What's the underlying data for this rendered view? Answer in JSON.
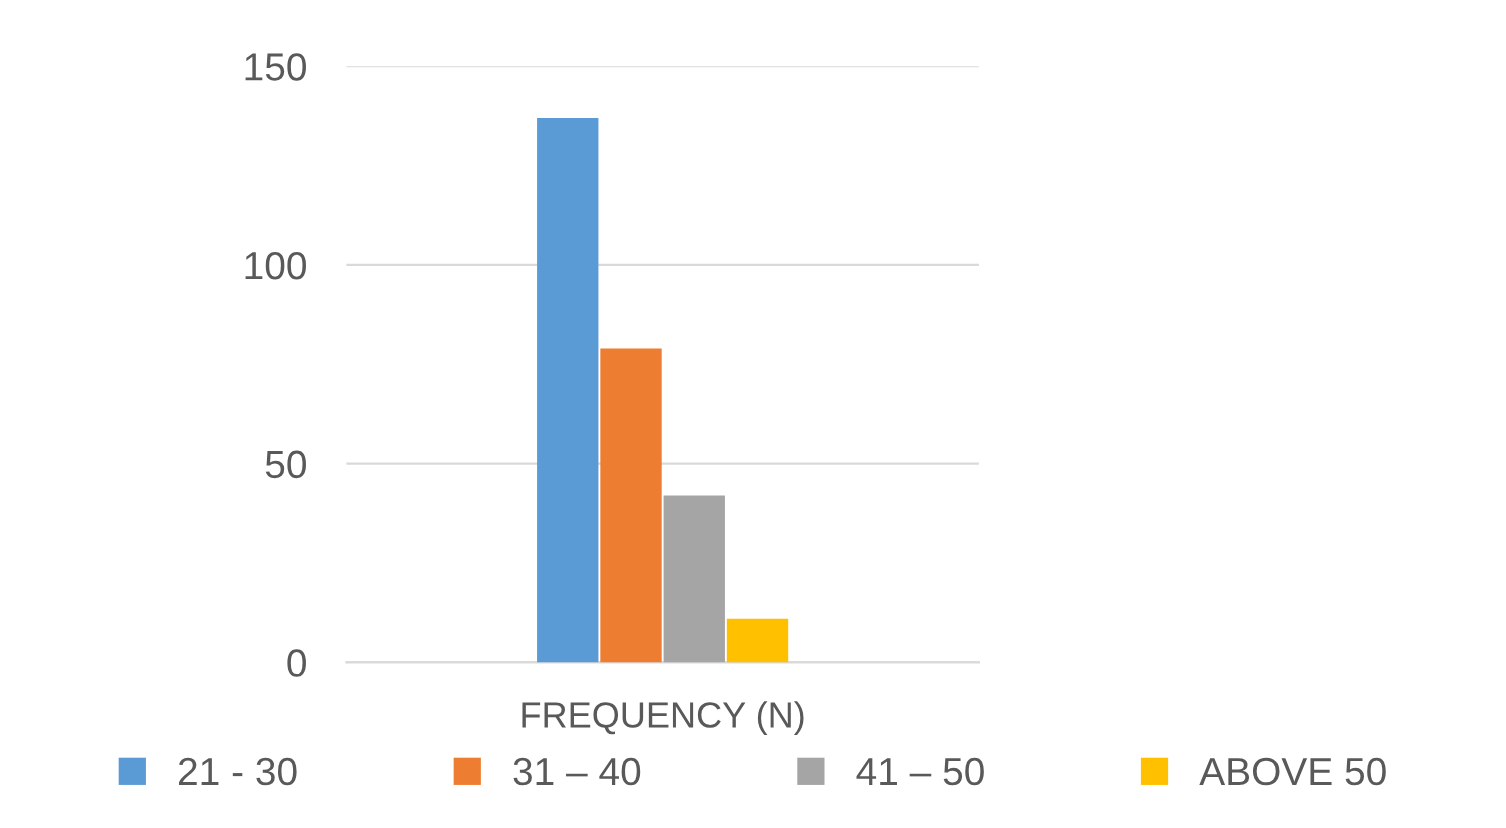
{
  "chart_data": {
    "type": "bar",
    "categories": [
      "FREQUENCY (N)"
    ],
    "series": [
      {
        "name": "21 - 30",
        "color": "#5b9bd5",
        "values": [
          137
        ]
      },
      {
        "name": "31 – 40",
        "color": "#ed7d31",
        "values": [
          79
        ]
      },
      {
        "name": "41 – 50",
        "color": "#a5a5a5",
        "values": [
          42
        ]
      },
      {
        "name": "ABOVE 50",
        "color": "#ffc000",
        "values": [
          11
        ]
      }
    ],
    "ylim": [
      0,
      150
    ],
    "yticks": [
      0,
      50,
      100,
      150
    ],
    "grid": "y",
    "legend": "bottom"
  }
}
